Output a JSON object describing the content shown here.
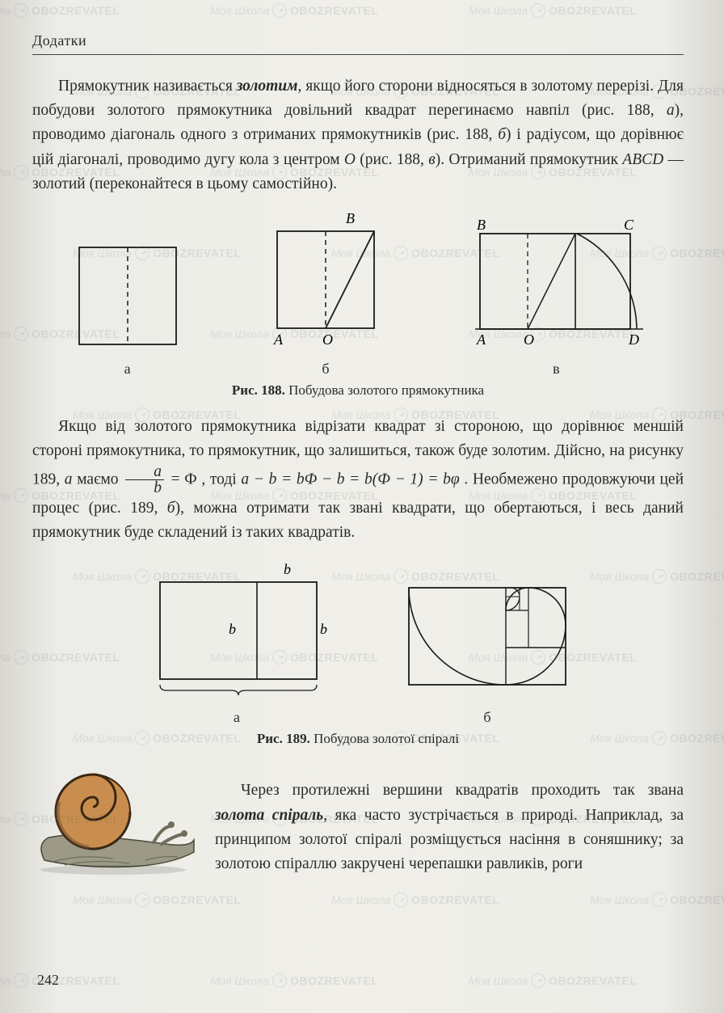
{
  "header": "Додатки",
  "watermark": {
    "part1": "Моя Школа",
    "part2": "OBOZREVATEL"
  },
  "para1": {
    "t1": "Прямокутник називається ",
    "bold1": "золотим",
    "t2": ", якщо його сторони відносяться в золотому перерізі. Для побудови золотого прямокутника довільний квадрат перегинаємо навпіл (рис. 188, ",
    "i1": "а",
    "t3": "), проводимо діагональ одного з отриманих прямокутників (рис. 188, ",
    "i2": "б",
    "t4": ") і радіусом, що дорівнює цій діагоналі, проводимо дугу кола з центром ",
    "i3": "O",
    "t5": " (рис. 188, ",
    "i4": "в",
    "t6": "). Отриманий прямокутник ",
    "i5": "ABCD",
    "t7": " — золотий (переконайтеся в цьому самостійно)."
  },
  "fig188": {
    "labels": {
      "a": "а",
      "b": "б",
      "c": "в"
    },
    "points": {
      "A": "A",
      "B": "B",
      "C": "C",
      "D": "D",
      "O": "O"
    },
    "caption_num": "Рис. 188.",
    "caption_text": " Побудова золотого прямокутника",
    "colors": {
      "stroke": "#1a1a1a",
      "dash": "#1a1a1a"
    }
  },
  "para2": {
    "t1": "Якщо від золотого прямокутника відрізати квадрат зі стороною, що дорівнює меншій стороні прямокутника, то прямокутник, що залишиться, також буде золотим. Дійсно, на рисунку 189, ",
    "i1": "а",
    "t2": " маємо ",
    "frac_num": "a",
    "frac_den": "b",
    "t3": " = Ф , тоді ",
    "eq": "a − b = bФ − b = b(Ф − 1) = bφ",
    "t4": " . Необмежено продовжуючи цей процес (рис. 189, ",
    "i2": "б",
    "t5": "), можна отримати так звані квадрати, що обертаються, і весь даний прямокутник буде складений із таких квадратів."
  },
  "fig189": {
    "labels": {
      "a": "а",
      "b": "б"
    },
    "dim_a": "a",
    "dim_b": "b",
    "caption_num": "Рис. 189.",
    "caption_text": " Побудова золотої спіралі",
    "colors": {
      "stroke": "#1a1a1a"
    }
  },
  "para3": {
    "t1": "Через протилежні вершини квадратів проходить так звана ",
    "bold1": "золота спіраль",
    "t2": ", яка часто зустрічається в природі. Наприклад, за принципом золотої спіралі розміщується насіння в соняшнику; за золотою спіраллю закручені черепашки равликів, роги"
  },
  "snail_colors": {
    "shell_dark": "#6b4a2a",
    "shell_light": "#c98e4f",
    "body": "#9c9a86",
    "body_dark": "#6f6d5c"
  },
  "page_number": "242"
}
